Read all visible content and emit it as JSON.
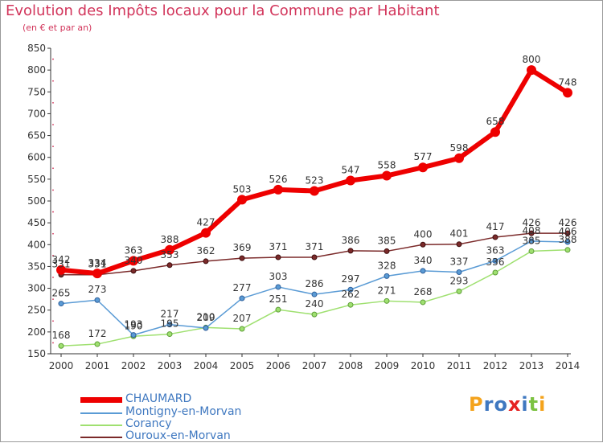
{
  "title": "Evolution des Impôts locaux pour la Commune par Habitant",
  "subtitle": "(en € et par an)",
  "logo": {
    "p": "P",
    "r": "r",
    "o": "o",
    "x": "x",
    "i1": "i",
    "t": "t",
    "i2": "i"
  },
  "colors": {
    "CHAUMARD": "#ee0000",
    "Montigny-en-Morvan": "#5a9bd5",
    "Corancy": "#9fe070",
    "Ouroux-en-Morvan": "#7b2a2a",
    "text": "#3f78c0",
    "title": "#d2355b"
  },
  "chart_data": {
    "type": "line",
    "title": "Evolution des Impôts locaux pour la Commune par Habitant",
    "subtitle": "(en € et par an)",
    "x": [
      "2000",
      "2001",
      "2002",
      "2003",
      "2004",
      "2005",
      "2006",
      "2007",
      "2008",
      "2009",
      "2010",
      "2011",
      "2012",
      "2013",
      "2014"
    ],
    "ylim": [
      150,
      850
    ],
    "yticks": [
      150,
      200,
      250,
      300,
      350,
      400,
      450,
      500,
      550,
      600,
      650,
      700,
      750,
      800,
      850
    ],
    "grid": false,
    "legend": "bottom-left",
    "series": [
      {
        "name": "CHAUMARD",
        "values": [
          342,
          334,
          363,
          388,
          427,
          503,
          526,
          523,
          547,
          558,
          577,
          598,
          658,
          800,
          748
        ]
      },
      {
        "name": "Montigny-en-Morvan",
        "values": [
          265,
          273,
          193,
          217,
          209,
          277,
          303,
          286,
          297,
          328,
          340,
          337,
          363,
          408,
          406
        ]
      },
      {
        "name": "Corancy",
        "values": [
          168,
          172,
          190,
          195,
          210,
          207,
          251,
          240,
          262,
          271,
          268,
          293,
          336,
          385,
          388
        ]
      },
      {
        "name": "Ouroux-en-Morvan",
        "values": [
          331,
          331,
          340,
          353,
          362,
          369,
          371,
          371,
          386,
          385,
          400,
          401,
          417,
          426,
          426
        ]
      }
    ]
  }
}
